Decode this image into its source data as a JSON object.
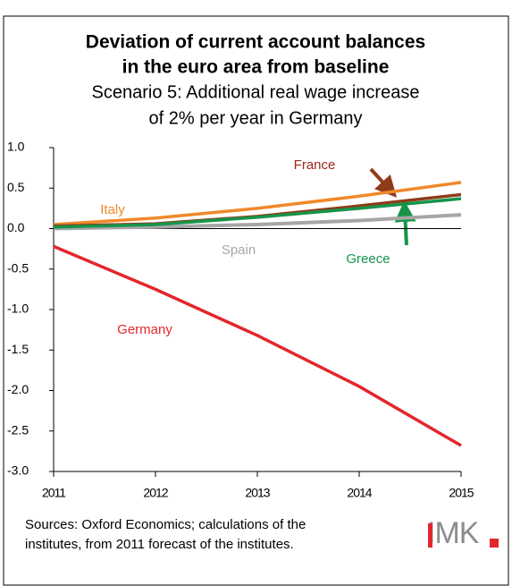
{
  "chart_data": {
    "type": "line",
    "title": "Deviation of current account balances in the euro area from baseline",
    "title_lines": [
      "Deviation of current account balances",
      "in the euro area from baseline"
    ],
    "subtitle_lines": [
      "Scenario 5: Additional real wage increase",
      "of 2% per year in Germany"
    ],
    "x": [
      2011,
      2012,
      2013,
      2014,
      2015
    ],
    "xlim": [
      2011,
      2015
    ],
    "xticks": [
      2011,
      2012,
      2013,
      2014,
      2015
    ],
    "ylim": [
      -3,
      1
    ],
    "yticks": [
      {
        "value": 1,
        "label": "1.0"
      },
      {
        "value": 0.5,
        "label": "0.5"
      },
      {
        "value": 0,
        "label": "0.0"
      },
      {
        "value": -0.5,
        "label": "-0.5"
      },
      {
        "value": -1,
        "label": "-1.0"
      },
      {
        "value": -1.5,
        "label": "-1.5"
      },
      {
        "value": -2,
        "label": "-2.0"
      },
      {
        "value": -2.5,
        "label": "-2.5"
      },
      {
        "value": -3,
        "label": "-3.0"
      }
    ],
    "grid": false,
    "series": [
      {
        "name": "Germany",
        "color": "#e3262c",
        "values": [
          -0.22,
          -0.75,
          -1.32,
          -1.95,
          -2.68
        ]
      },
      {
        "name": "Spain",
        "color": "#a6a6a6",
        "values": [
          0.0,
          0.02,
          0.05,
          0.1,
          0.17
        ]
      },
      {
        "name": "Italy",
        "color": "#f0892a",
        "values": [
          0.05,
          0.13,
          0.25,
          0.4,
          0.57
        ]
      },
      {
        "name": "France",
        "color": "#8e3b1a",
        "values": [
          0.03,
          0.06,
          0.15,
          0.28,
          0.42
        ]
      },
      {
        "name": "Greece",
        "color": "#17944a",
        "values": [
          0.02,
          0.05,
          0.14,
          0.25,
          0.37
        ]
      }
    ],
    "sources": [
      "Sources: Oxford Economics; calculations of the",
      "institutes, from 2011 forecast of the institutes."
    ],
    "logo": "IMK"
  }
}
